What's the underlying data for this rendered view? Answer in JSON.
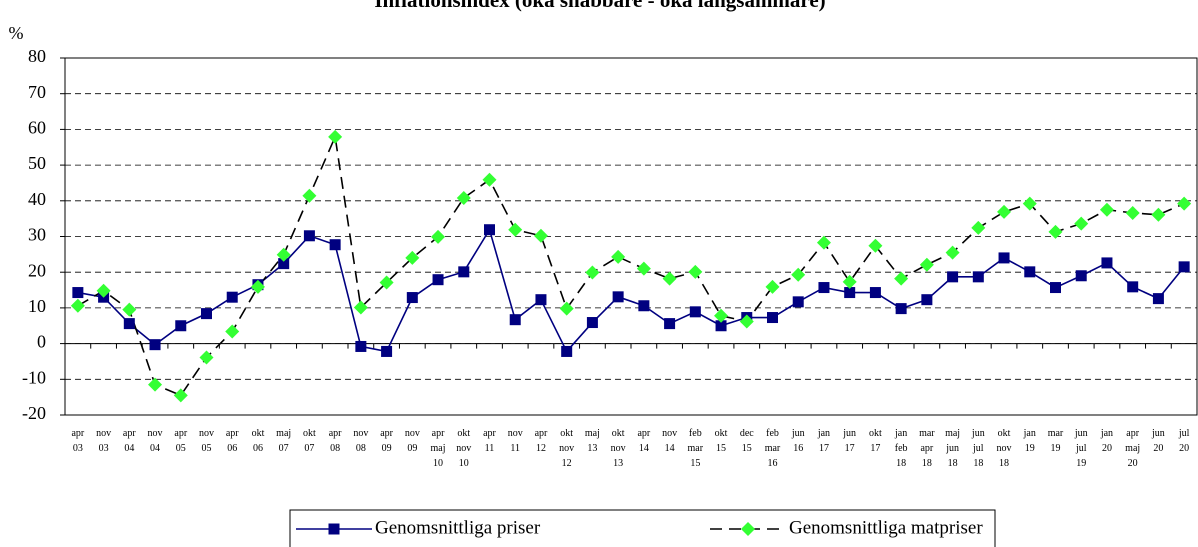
{
  "chart_data": {
    "type": "line",
    "title": "Inflationsindex (öka snabbare - öka långsammare)",
    "y_label": "%",
    "categories": [
      "apr 03",
      "nov 03",
      "apr 04",
      "nov 04",
      "apr 05",
      "nov 05",
      "apr 06",
      "okt 06",
      "maj 07",
      "okt 07",
      "apr 08",
      "nov 08",
      "apr 09",
      "nov 09",
      "apr maj 10",
      "okt nov 10",
      "apr 11",
      "nov 11",
      "apr 12",
      "okt nov 12",
      "maj 13",
      "okt nov 13",
      "apr 14",
      "nov 14",
      "feb mar 15",
      "okt 15",
      "dec 15",
      "feb mar 16",
      "jun 16",
      "jan 17",
      "jun 17",
      "okt 17",
      "jan feb 18",
      "mar apr 18",
      "maj jun 18",
      "jun jul 18",
      "okt nov 18",
      "jan 19",
      "mar 19",
      "jun jul 19",
      "jan 20",
      "apr maj 20",
      "jun 20",
      "jul 20"
    ],
    "series": [
      {
        "name": "Genomsnittliga priser",
        "color": "#000080",
        "line_color": "#000080",
        "dashed": false,
        "marker": "square",
        "values": [
          14.3,
          13,
          5.6,
          -0.3,
          5,
          8.4,
          13,
          16.5,
          22.4,
          30.2,
          27.7,
          -0.8,
          -2.2,
          12.9,
          17.9,
          20.1,
          31.9,
          6.7,
          12.3,
          -2.2,
          5.9,
          13.1,
          10.6,
          5.6,
          8.9,
          5,
          7.3,
          7.3,
          11.7,
          15.7,
          14.3,
          14.3,
          9.8,
          12.3,
          18.7,
          18.7,
          24,
          20.1,
          15.7,
          19,
          22.6,
          15.9,
          12.6,
          21.5
        ]
      },
      {
        "name": "Genomsnittliga matpriser",
        "color": "#33ff33",
        "line_color": "#000000",
        "dashed": true,
        "marker": "diamond",
        "values": [
          10.6,
          14.8,
          9.5,
          -11.5,
          -14.5,
          -3.9,
          3.4,
          15.9,
          24.9,
          41.4,
          57.9,
          10.1,
          17.1,
          24,
          29.9,
          40.8,
          45.9,
          31.9,
          30.2,
          9.8,
          19.9,
          24.3,
          21,
          18.2,
          20.1,
          7.8,
          6.2,
          15.9,
          19.3,
          28.3,
          17.3,
          27.4,
          18.2,
          22.1,
          25.5,
          32.4,
          36.9,
          39.2,
          31.3,
          33.6,
          37.5,
          36.6,
          36.1,
          39.2
        ]
      }
    ],
    "ylim": [
      -20,
      80
    ],
    "yticks": [
      -20,
      -10,
      0,
      10,
      20,
      30,
      40,
      50,
      60,
      70,
      80
    ],
    "grid": true,
    "legend": "bottom"
  }
}
